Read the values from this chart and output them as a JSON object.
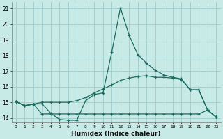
{
  "xlabel": "Humidex (Indice chaleur)",
  "xlim": [
    -0.5,
    23.5
  ],
  "ylim": [
    13.7,
    21.4
  ],
  "xticks": [
    0,
    1,
    2,
    3,
    4,
    5,
    6,
    7,
    8,
    9,
    10,
    11,
    12,
    13,
    14,
    15,
    16,
    17,
    18,
    19,
    20,
    21,
    22,
    23
  ],
  "yticks": [
    14,
    15,
    16,
    17,
    18,
    19,
    20,
    21
  ],
  "bg_color": "#c8eae6",
  "grid_color": "#a0cccc",
  "line_color": "#1a6b60",
  "line1_y": [
    15.05,
    14.78,
    14.88,
    14.9,
    14.3,
    13.9,
    13.85,
    13.85,
    15.1,
    15.5,
    15.6,
    18.2,
    21.05,
    19.3,
    18.05,
    17.5,
    17.05,
    16.75,
    16.6,
    16.5,
    15.8,
    15.8,
    14.5,
    14.05
  ],
  "line2_y": [
    15.05,
    14.78,
    14.88,
    15.0,
    15.0,
    15.0,
    15.0,
    15.1,
    15.3,
    15.6,
    15.85,
    16.1,
    16.4,
    16.55,
    16.65,
    16.7,
    16.6,
    16.6,
    16.55,
    16.45,
    15.8,
    15.8,
    14.5,
    14.05
  ],
  "line3_y": [
    15.05,
    14.78,
    14.88,
    14.25,
    14.25,
    14.25,
    14.25,
    14.25,
    14.25,
    14.25,
    14.25,
    14.25,
    14.25,
    14.25,
    14.25,
    14.25,
    14.25,
    14.25,
    14.25,
    14.25,
    14.25,
    14.25,
    14.5,
    14.05
  ]
}
